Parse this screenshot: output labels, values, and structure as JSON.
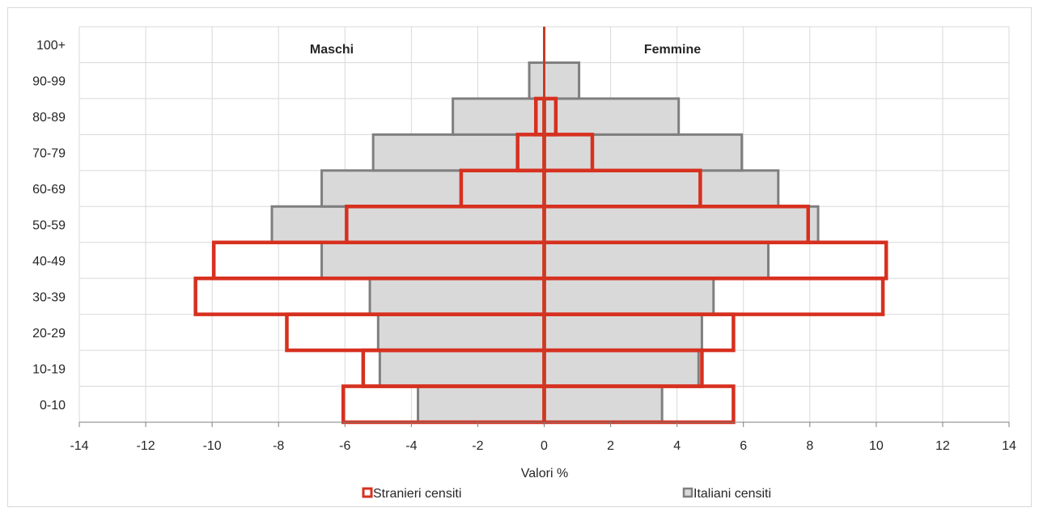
{
  "chart_data": {
    "type": "bar",
    "subtype": "population-pyramid",
    "categories": [
      "0-10",
      "10-19",
      "20-29",
      "30-39",
      "40-49",
      "50-59",
      "60-69",
      "70-79",
      "80-89",
      "90-99",
      "100+"
    ],
    "xlabel": "Valori %",
    "xlim": [
      -14,
      14
    ],
    "xticks": [
      -14,
      -12,
      -10,
      -8,
      -6,
      -4,
      -2,
      0,
      2,
      4,
      6,
      8,
      10,
      12,
      14
    ],
    "grid": true,
    "legend_position": "bottom",
    "side_labels": {
      "left": "Maschi",
      "right": "Femmine"
    },
    "series": [
      {
        "name": "Italiani censiti",
        "style": "filled",
        "fill_color": "#d9d9d9",
        "stroke_color": "#7f7f7f",
        "male": [
          -3.8,
          -4.95,
          -5.0,
          -5.25,
          -6.7,
          -8.2,
          -6.7,
          -5.15,
          -2.75,
          -0.45,
          0
        ],
        "female": [
          3.55,
          4.65,
          4.75,
          5.1,
          6.75,
          8.25,
          7.05,
          5.95,
          4.05,
          1.05,
          0
        ]
      },
      {
        "name": "Stranieri censiti",
        "style": "outline",
        "stroke_color": "#d7301f",
        "male": [
          -6.05,
          -5.45,
          -7.75,
          -10.5,
          -9.95,
          -5.95,
          -2.5,
          -0.8,
          -0.25,
          0,
          0
        ],
        "female": [
          5.7,
          4.75,
          5.7,
          10.2,
          10.3,
          7.95,
          4.7,
          1.45,
          0.35,
          0,
          0
        ]
      }
    ]
  },
  "legend": {
    "items": [
      {
        "label": "Stranieri censiti",
        "swatch": "outline",
        "color": "#d7301f"
      },
      {
        "label": "Italiani censiti",
        "swatch": "filled",
        "color": "#d9d9d9",
        "border": "#7f7f7f"
      }
    ]
  },
  "colors": {
    "grid": "#d9d9d9",
    "axis": "#7f7f7f",
    "center_line": "#d7301f"
  }
}
